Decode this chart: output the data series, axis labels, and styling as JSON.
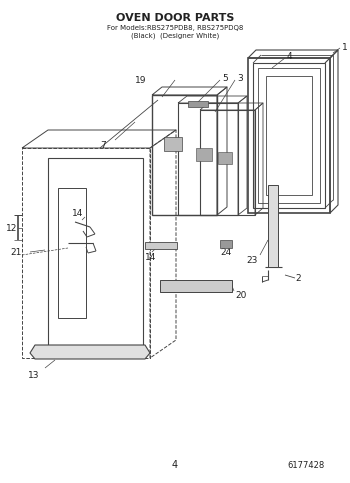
{
  "title": "OVEN DOOR PARTS",
  "subtitle1": "For Models:RBS275PDB8, RBS275PDQ8",
  "subtitle2": "(Black)  (Designer White)",
  "page_number": "4",
  "doc_number": "6177428",
  "bg_color": "#ffffff",
  "line_color": "#444444",
  "text_color": "#222222"
}
